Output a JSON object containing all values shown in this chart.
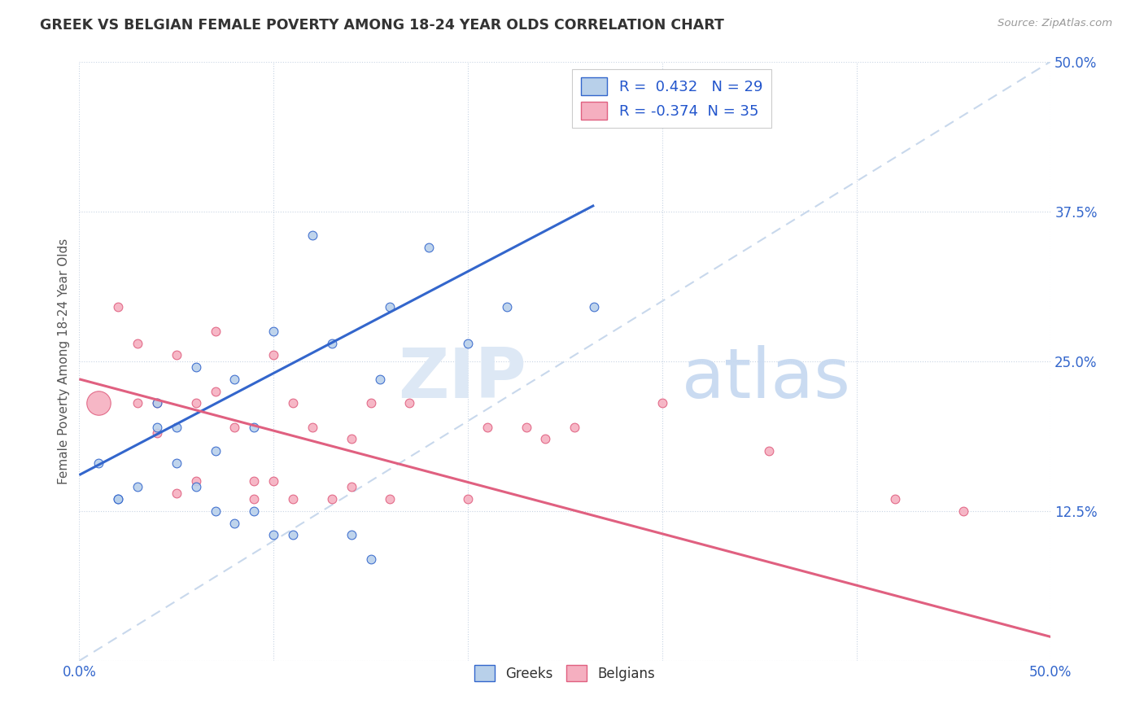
{
  "title": "GREEK VS BELGIAN FEMALE POVERTY AMONG 18-24 YEAR OLDS CORRELATION CHART",
  "source": "Source: ZipAtlas.com",
  "ylabel": "Female Poverty Among 18-24 Year Olds",
  "xlim": [
    0.0,
    0.5
  ],
  "ylim": [
    0.0,
    0.5
  ],
  "greek_R": 0.432,
  "greek_N": 29,
  "belgian_R": -0.374,
  "belgian_N": 35,
  "greek_color": "#b8d0ea",
  "belgian_color": "#f5afc0",
  "greek_line_color": "#3366cc",
  "belgian_line_color": "#e06080",
  "diagonal_color": "#c8d8ec",
  "background_color": "#ffffff",
  "greeks_x": [
    0.01,
    0.02,
    0.02,
    0.03,
    0.04,
    0.04,
    0.05,
    0.05,
    0.06,
    0.06,
    0.07,
    0.07,
    0.08,
    0.08,
    0.09,
    0.09,
    0.1,
    0.1,
    0.11,
    0.12,
    0.13,
    0.14,
    0.15,
    0.155,
    0.16,
    0.18,
    0.2,
    0.22,
    0.265
  ],
  "greeks_y": [
    0.165,
    0.135,
    0.135,
    0.145,
    0.215,
    0.195,
    0.195,
    0.165,
    0.145,
    0.245,
    0.175,
    0.125,
    0.115,
    0.235,
    0.195,
    0.125,
    0.105,
    0.275,
    0.105,
    0.355,
    0.265,
    0.105,
    0.085,
    0.235,
    0.295,
    0.345,
    0.265,
    0.295,
    0.295
  ],
  "greeks_size": [
    60,
    60,
    60,
    60,
    60,
    60,
    60,
    60,
    60,
    60,
    60,
    60,
    60,
    60,
    60,
    60,
    60,
    60,
    60,
    60,
    60,
    60,
    60,
    60,
    60,
    60,
    60,
    60,
    60
  ],
  "belgians_x": [
    0.01,
    0.02,
    0.03,
    0.03,
    0.04,
    0.04,
    0.05,
    0.05,
    0.06,
    0.06,
    0.07,
    0.07,
    0.08,
    0.09,
    0.09,
    0.1,
    0.1,
    0.11,
    0.11,
    0.12,
    0.13,
    0.14,
    0.14,
    0.15,
    0.16,
    0.17,
    0.2,
    0.21,
    0.23,
    0.24,
    0.255,
    0.3,
    0.355,
    0.42,
    0.455
  ],
  "belgians_y": [
    0.215,
    0.295,
    0.215,
    0.265,
    0.215,
    0.19,
    0.14,
    0.255,
    0.215,
    0.15,
    0.275,
    0.225,
    0.195,
    0.15,
    0.135,
    0.255,
    0.15,
    0.215,
    0.135,
    0.195,
    0.135,
    0.185,
    0.145,
    0.215,
    0.135,
    0.215,
    0.135,
    0.195,
    0.195,
    0.185,
    0.195,
    0.215,
    0.175,
    0.135,
    0.125
  ],
  "belgians_size": [
    450,
    60,
    60,
    60,
    60,
    60,
    60,
    60,
    60,
    60,
    60,
    60,
    60,
    60,
    60,
    60,
    60,
    60,
    60,
    60,
    60,
    60,
    60,
    60,
    60,
    60,
    60,
    60,
    60,
    60,
    60,
    60,
    60,
    60,
    60
  ],
  "greek_line_x0": 0.0,
  "greek_line_x1": 0.265,
  "greek_line_y0": 0.155,
  "greek_line_y1": 0.38,
  "belgian_line_x0": 0.0,
  "belgian_line_x1": 0.5,
  "belgian_line_y0": 0.235,
  "belgian_line_y1": 0.02
}
